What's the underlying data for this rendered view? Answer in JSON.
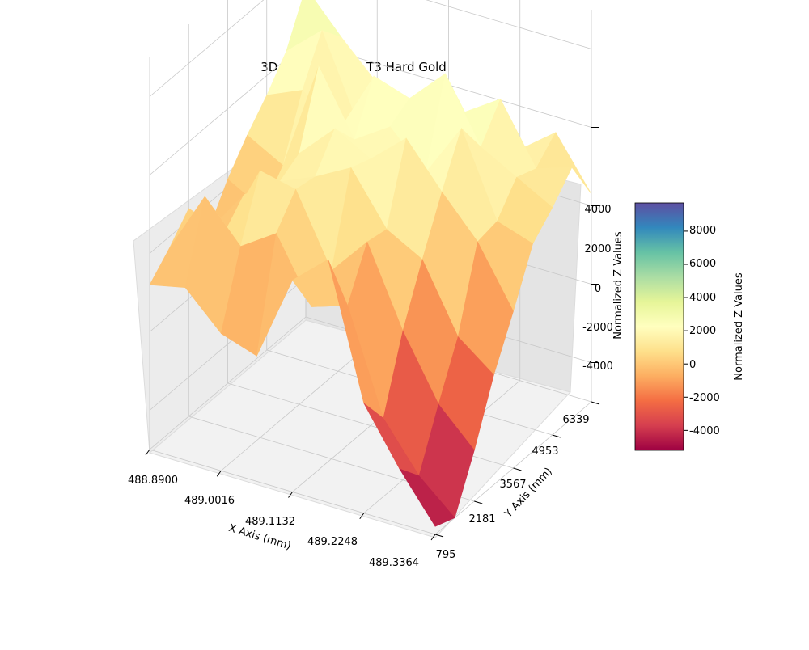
{
  "chart_data": {
    "type": "surface3d",
    "title": "3D Surface Plot - T3 Hard Gold",
    "xlabel": "X Axis (mm)",
    "ylabel": "Y Axis (mm)",
    "zlabel": "Normalized Z Values",
    "xticks": [
      "488.8900",
      "489.0016",
      "489.1132",
      "489.2248",
      "489.3364"
    ],
    "yticks": [
      "795",
      "2181",
      "3567",
      "4953",
      "6339"
    ],
    "zticks": [
      "-4000",
      "-2000",
      "0",
      "2000",
      "4000"
    ],
    "xlim": [
      488.89,
      489.3364
    ],
    "ylim": [
      795,
      6339
    ],
    "zlim": [
      -5000,
      5000
    ],
    "colormap": "Spectral",
    "colorbar": {
      "label": "Normalized Z Values",
      "ticks": [
        "-4000",
        "-2000",
        "0",
        "2000",
        "4000",
        "6000",
        "8000"
      ],
      "range": [
        -5200,
        9700
      ]
    },
    "surface_x": [
      488.89,
      488.9458,
      489.0016,
      489.0574,
      489.1132,
      489.169,
      489.2248,
      489.2806,
      489.3364
    ],
    "surface_y": [
      795,
      1488,
      2181,
      2874,
      3567,
      4260,
      4953,
      5646,
      6339
    ],
    "surface_z": [
      [
        -800,
        -600,
        -1500,
        -1800,
        400,
        1200,
        -2200,
        -3600,
        -4800
      ],
      [
        -300,
        1300,
        300,
        900,
        -700,
        -400,
        -3000,
        -4200,
        -5000
      ],
      [
        300,
        -50,
        1800,
        1600,
        -200,
        800,
        -1200,
        -2800,
        -3700
      ],
      [
        -700,
        500,
        1100,
        1500,
        2000,
        700,
        200,
        -1500,
        -2200
      ],
      [
        200,
        -300,
        1400,
        2300,
        1800,
        2600,
        1500,
        500,
        -1000
      ],
      [
        900,
        400,
        3200,
        1600,
        2200,
        1300,
        2700,
        600,
        300
      ],
      [
        1500,
        1900,
        1100,
        2800,
        2500,
        3400,
        1800,
        1300,
        800
      ],
      [
        2200,
        3000,
        900,
        1200,
        1700,
        2000,
        2600,
        1100,
        1400
      ],
      [
        3400,
        2400,
        1500,
        400,
        700,
        1400,
        900,
        1600,
        300
      ]
    ]
  }
}
